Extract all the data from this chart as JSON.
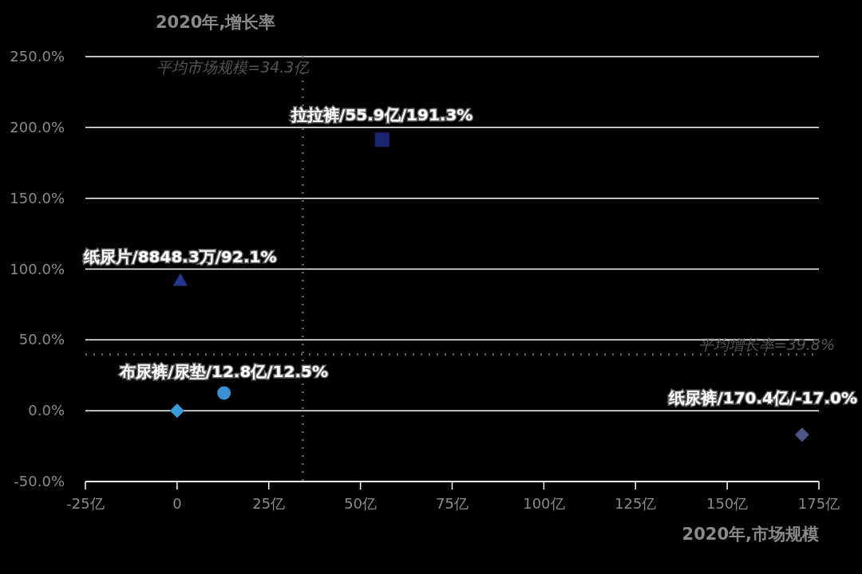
{
  "chart_data": {
    "type": "scatter",
    "xlabel": "2020年,市场规模",
    "ylabel": "2020年,增长率",
    "xlim": [
      -25,
      175
    ],
    "ylim": [
      -50,
      250
    ],
    "xticks": [
      {
        "value": -25,
        "label": "-25亿"
      },
      0,
      {
        "value": 25,
        "label": "25亿"
      },
      {
        "value": 50,
        "label": "50亿"
      },
      {
        "value": 75,
        "label": "75亿"
      },
      {
        "value": 100,
        "label": "100亿"
      },
      {
        "value": 125,
        "label": "125亿"
      },
      {
        "value": 150,
        "label": "150亿"
      },
      {
        "value": 175,
        "label": "175亿"
      }
    ],
    "yticks": [
      {
        "value": -50,
        "label": "-50.0%"
      },
      {
        "value": 0,
        "label": "0.0%"
      },
      {
        "value": 50,
        "label": "50.0%"
      },
      {
        "value": 100,
        "label": "100.0%"
      },
      {
        "value": 150,
        "label": "150.0%"
      },
      {
        "value": 200,
        "label": "200.0%"
      },
      {
        "value": 250,
        "label": "250.0%"
      }
    ],
    "grid": "y",
    "ref_lines": [
      {
        "axis": "x",
        "value": 34.3,
        "label": "平均市场规模=34.3亿",
        "color": "#555555",
        "line_style": "dotted"
      },
      {
        "axis": "y",
        "value": 39.8,
        "label": "平均增长率=39.8%",
        "color": "#555555",
        "line_style": "dotted"
      }
    ],
    "series": [
      {
        "x": [
          55.9
        ],
        "values": [
          191.3
        ],
        "color": "#1c2670",
        "marker": "square",
        "value_labels": [
          "拉拉裤/55.9亿/191.3%"
        ]
      },
      {
        "x": [
          0.88
        ],
        "values": [
          92.1
        ],
        "color": "#243690",
        "marker": "triangle",
        "value_labels": [
          "纸尿片/8848.3万/92.1%"
        ]
      },
      {
        "x": [
          12.8
        ],
        "values": [
          12.5
        ],
        "color": "#3b8fd3",
        "marker": "circle",
        "value_labels": [
          "布尿裤/尿垫/12.8亿/12.5%"
        ]
      },
      {
        "x": [
          0
        ],
        "values": [
          0
        ],
        "color": "#3a9ad8",
        "marker": "diamond"
      },
      {
        "x": [
          170.4
        ],
        "values": [
          -17.0
        ],
        "color": "#4b5688",
        "marker": "diamond",
        "value_labels": [
          "纸尿裤/170.4亿/-17.0%"
        ]
      }
    ]
  }
}
